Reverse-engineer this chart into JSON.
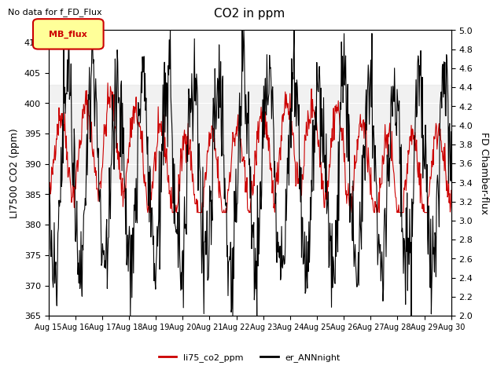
{
  "title": "CO2 in ppm",
  "suptitle": "No data for f_FD_Flux",
  "ylabel_left": "LI7500 CO2 (ppm)",
  "ylabel_right": "FD Chamber-flux",
  "ylim_left": [
    365,
    412
  ],
  "ylim_right": [
    2.0,
    5.0
  ],
  "yticks_left": [
    365,
    370,
    375,
    380,
    385,
    390,
    395,
    400,
    405,
    410
  ],
  "yticks_right": [
    2.0,
    2.2,
    2.4,
    2.6,
    2.8,
    3.0,
    3.2,
    3.4,
    3.6,
    3.8,
    4.0,
    4.2,
    4.4,
    4.6,
    4.8,
    5.0
  ],
  "xtick_labels": [
    "Aug 15",
    "Aug 16",
    "Aug 17",
    "Aug 18",
    "Aug 19",
    "Aug 20",
    "Aug 21",
    "Aug 22",
    "Aug 23",
    "Aug 24",
    "Aug 25",
    "Aug 26",
    "Aug 27",
    "Aug 28",
    "Aug 29",
    "Aug 30"
  ],
  "line1_color": "#cc0000",
  "line2_color": "#000000",
  "line1_label": "li75_co2_ppm",
  "line2_label": "er_ANNnight",
  "legend_box_color": "#ffff99",
  "legend_box_border": "#cc0000",
  "legend_box_text": "MB_flux",
  "shading_color": "#d3d3d3",
  "background_color": "#ffffff",
  "grid_color": "#ffffff"
}
